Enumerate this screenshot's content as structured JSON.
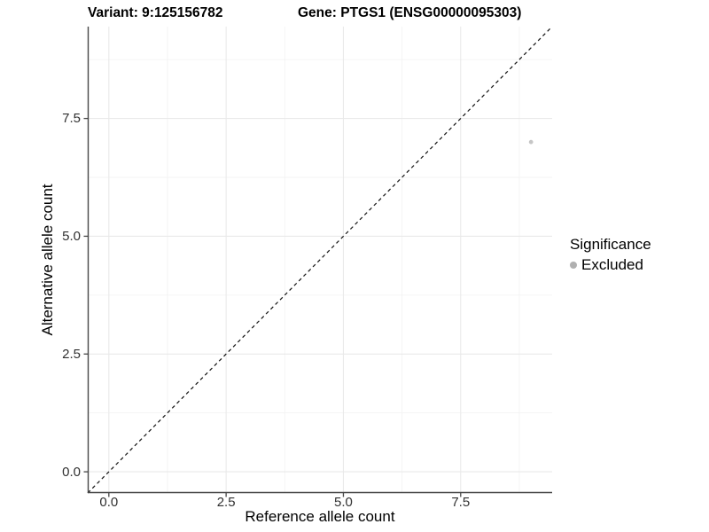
{
  "header": {
    "variant_title": "Variant: 9:125156782",
    "gene_title": "Gene: PTGS1 (ENSG00000095303)"
  },
  "chart_data": {
    "type": "scatter",
    "title": "Variant: 9:125156782 — Gene: PTGS1 (ENSG00000095303)",
    "xlabel": "Reference allele count",
    "ylabel": "Alternative allele count",
    "xlim": [
      -0.45,
      9.45
    ],
    "ylim": [
      -0.45,
      9.45
    ],
    "grid": true,
    "x_ticks": {
      "values": [
        0,
        2.5,
        5,
        7.5
      ],
      "labels": [
        "0.0",
        "2.5",
        "5.0",
        "7.5"
      ],
      "minor": [
        1.25,
        3.75,
        6.25,
        8.75
      ]
    },
    "y_ticks": {
      "values": [
        0,
        2.5,
        5,
        7.5
      ],
      "labels": [
        "0.0",
        "2.5",
        "5.0",
        "7.5"
      ],
      "minor": [
        1.25,
        3.75,
        6.25,
        8.75
      ]
    },
    "series": [
      {
        "name": "Excluded",
        "color": "#c6c6c6",
        "points": [
          {
            "x": 9,
            "y": 7
          }
        ]
      }
    ],
    "reference_line": {
      "slope": 1,
      "intercept": 0,
      "linetype": "dashed",
      "color": "#111111"
    },
    "legend": {
      "title": "Significance",
      "position": "right",
      "entries": [
        {
          "label": "Excluded",
          "color": "#b0b0b0"
        }
      ]
    },
    "colors": {
      "axis_line": "#464646",
      "grid_major": "#e9e9e9",
      "grid_minor": "#f3f3f3",
      "tick_label": "#303030"
    }
  }
}
